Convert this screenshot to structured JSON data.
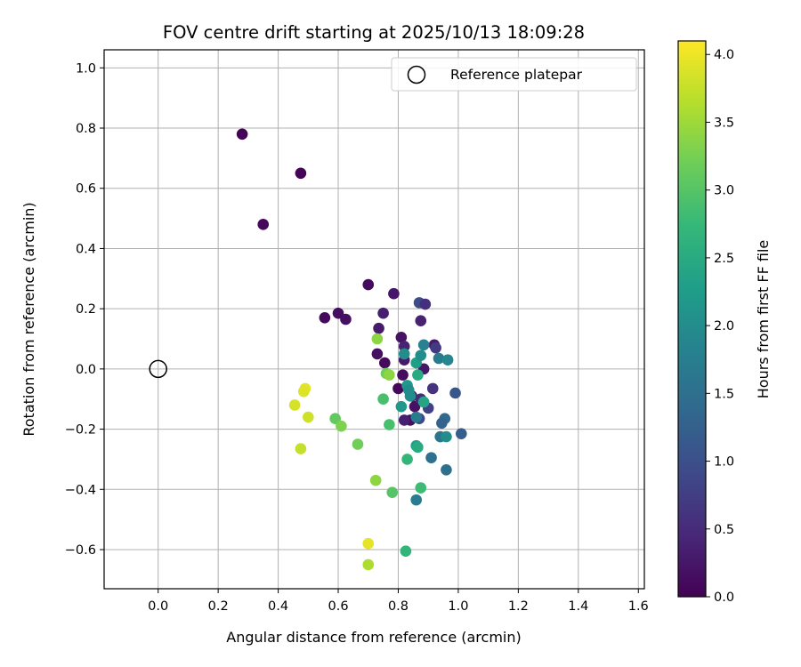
{
  "chart_data": {
    "type": "scatter",
    "title": "FOV centre drift starting at 2025/10/13 18:09:28",
    "xlabel": "Angular distance from reference (arcmin)",
    "ylabel": "Rotation from reference (arcmin)",
    "xlim": [
      -0.18,
      1.62
    ],
    "ylim": [
      -0.73,
      1.06
    ],
    "xticks": [
      0.0,
      0.2,
      0.4,
      0.6,
      0.8,
      1.0,
      1.2,
      1.4,
      1.6
    ],
    "xtick_labels": [
      "0.0",
      "0.2",
      "0.4",
      "0.6",
      "0.8",
      "1.0",
      "1.2",
      "1.4",
      "1.6"
    ],
    "yticks": [
      -0.6,
      -0.4,
      -0.2,
      0.0,
      0.2,
      0.4,
      0.6,
      0.8,
      1.0
    ],
    "ytick_labels": [
      "−0.6",
      "−0.4",
      "−0.2",
      "0.0",
      "0.2",
      "0.4",
      "0.6",
      "0.8",
      "1.0"
    ],
    "grid": true,
    "legend": {
      "position": "top-right",
      "entries": [
        "Reference platepar"
      ]
    },
    "reference": {
      "x": 0.0,
      "y": 0.0,
      "label": "Reference platepar"
    },
    "colorbar": {
      "label": "Hours from first FF file",
      "range": [
        0.0,
        4.1
      ],
      "colormap": "viridis",
      "ticks": [
        0.0,
        0.5,
        1.0,
        1.5,
        2.0,
        2.5,
        3.0,
        3.5,
        4.0
      ],
      "tick_labels": [
        "0.0",
        "0.5",
        "1.0",
        "1.5",
        "2.0",
        "2.5",
        "3.0",
        "3.5",
        "4.0"
      ]
    },
    "points": [
      {
        "x": 0.28,
        "y": 0.78,
        "t": 0.02
      },
      {
        "x": 0.475,
        "y": 0.65,
        "t": 0.05
      },
      {
        "x": 0.35,
        "y": 0.48,
        "t": 0.08
      },
      {
        "x": 0.7,
        "y": 0.28,
        "t": 0.12
      },
      {
        "x": 0.785,
        "y": 0.25,
        "t": 0.25
      },
      {
        "x": 0.555,
        "y": 0.17,
        "t": 0.1
      },
      {
        "x": 0.6,
        "y": 0.185,
        "t": 0.15
      },
      {
        "x": 0.625,
        "y": 0.165,
        "t": 0.18
      },
      {
        "x": 0.75,
        "y": 0.185,
        "t": 0.35
      },
      {
        "x": 0.735,
        "y": 0.135,
        "t": 0.3
      },
      {
        "x": 0.81,
        "y": 0.105,
        "t": 0.2
      },
      {
        "x": 0.82,
        "y": 0.075,
        "t": 0.4
      },
      {
        "x": 0.73,
        "y": 0.05,
        "t": 0.15
      },
      {
        "x": 0.755,
        "y": 0.02,
        "t": 0.1
      },
      {
        "x": 0.82,
        "y": 0.03,
        "t": 0.3
      },
      {
        "x": 0.815,
        "y": -0.02,
        "t": 0.12
      },
      {
        "x": 0.8,
        "y": -0.065,
        "t": 0.08
      },
      {
        "x": 0.845,
        "y": -0.09,
        "t": 0.25
      },
      {
        "x": 0.855,
        "y": -0.125,
        "t": 0.2
      },
      {
        "x": 0.84,
        "y": -0.17,
        "t": 0.15
      },
      {
        "x": 0.82,
        "y": -0.17,
        "t": 0.35
      },
      {
        "x": 0.87,
        "y": 0.22,
        "t": 0.95
      },
      {
        "x": 0.89,
        "y": 0.215,
        "t": 0.55
      },
      {
        "x": 0.875,
        "y": 0.16,
        "t": 0.4
      },
      {
        "x": 0.92,
        "y": 0.08,
        "t": 0.3
      },
      {
        "x": 0.925,
        "y": 0.07,
        "t": 0.7
      },
      {
        "x": 0.885,
        "y": 0.0,
        "t": 0.25
      },
      {
        "x": 0.915,
        "y": -0.065,
        "t": 0.6
      },
      {
        "x": 0.875,
        "y": -0.1,
        "t": 0.5
      },
      {
        "x": 0.9,
        "y": -0.13,
        "t": 0.8
      },
      {
        "x": 0.87,
        "y": -0.165,
        "t": 0.9
      },
      {
        "x": 0.99,
        "y": -0.08,
        "t": 1.1
      },
      {
        "x": 1.01,
        "y": -0.215,
        "t": 1.2
      },
      {
        "x": 0.94,
        "y": -0.225,
        "t": 1.6
      },
      {
        "x": 0.96,
        "y": -0.225,
        "t": 2.0
      },
      {
        "x": 0.955,
        "y": -0.165,
        "t": 1.4
      },
      {
        "x": 0.945,
        "y": -0.18,
        "t": 1.3
      },
      {
        "x": 0.91,
        "y": -0.295,
        "t": 1.5
      },
      {
        "x": 0.96,
        "y": -0.335,
        "t": 1.5
      },
      {
        "x": 0.86,
        "y": -0.435,
        "t": 1.75
      },
      {
        "x": 0.82,
        "y": 0.05,
        "t": 2.0
      },
      {
        "x": 0.83,
        "y": -0.055,
        "t": 2.2
      },
      {
        "x": 0.835,
        "y": -0.07,
        "t": 2.0
      },
      {
        "x": 0.86,
        "y": 0.02,
        "t": 2.3
      },
      {
        "x": 0.865,
        "y": -0.02,
        "t": 2.5
      },
      {
        "x": 0.875,
        "y": 0.045,
        "t": 2.0
      },
      {
        "x": 0.885,
        "y": 0.08,
        "t": 1.8
      },
      {
        "x": 0.935,
        "y": 0.035,
        "t": 1.7
      },
      {
        "x": 0.965,
        "y": 0.03,
        "t": 1.9
      },
      {
        "x": 0.81,
        "y": -0.125,
        "t": 2.2
      },
      {
        "x": 0.84,
        "y": -0.09,
        "t": 2.0
      },
      {
        "x": 0.86,
        "y": -0.16,
        "t": 1.7
      },
      {
        "x": 0.885,
        "y": -0.11,
        "t": 2.4
      },
      {
        "x": 0.86,
        "y": -0.255,
        "t": 2.3
      },
      {
        "x": 0.865,
        "y": -0.26,
        "t": 2.5
      },
      {
        "x": 0.83,
        "y": -0.3,
        "t": 2.7
      },
      {
        "x": 0.875,
        "y": -0.395,
        "t": 2.8
      },
      {
        "x": 0.825,
        "y": -0.605,
        "t": 2.7
      },
      {
        "x": 0.76,
        "y": -0.015,
        "t": 3.2
      },
      {
        "x": 0.77,
        "y": -0.02,
        "t": 3.4
      },
      {
        "x": 0.73,
        "y": 0.1,
        "t": 3.4
      },
      {
        "x": 0.75,
        "y": -0.1,
        "t": 2.9
      },
      {
        "x": 0.77,
        "y": -0.185,
        "t": 2.9
      },
      {
        "x": 0.59,
        "y": -0.165,
        "t": 3.1
      },
      {
        "x": 0.61,
        "y": -0.19,
        "t": 3.3
      },
      {
        "x": 0.665,
        "y": -0.25,
        "t": 3.2
      },
      {
        "x": 0.725,
        "y": -0.37,
        "t": 3.4
      },
      {
        "x": 0.78,
        "y": -0.41,
        "t": 3.0
      },
      {
        "x": 0.49,
        "y": -0.065,
        "t": 3.95
      },
      {
        "x": 0.485,
        "y": -0.075,
        "t": 3.9
      },
      {
        "x": 0.455,
        "y": -0.12,
        "t": 3.85
      },
      {
        "x": 0.5,
        "y": -0.16,
        "t": 3.8
      },
      {
        "x": 0.475,
        "y": -0.265,
        "t": 3.75
      },
      {
        "x": 0.7,
        "y": -0.58,
        "t": 3.95
      },
      {
        "x": 0.7,
        "y": -0.65,
        "t": 3.6
      }
    ]
  }
}
